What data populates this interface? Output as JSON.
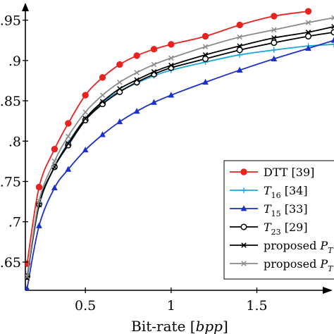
{
  "chart_data": {
    "type": "line",
    "xlabel": "Bit-rate [bpp]",
    "xlabel_parts": {
      "prefix": "Bit-rate [",
      "italic": "bpp",
      "suffix": "]"
    },
    "ylabel": "",
    "xlim": [
      0.15,
      1.95
    ],
    "ylim": [
      0.615,
      0.975
    ],
    "x_ticks": [
      0.5,
      1,
      1.5
    ],
    "x_tick_labels": [
      "0.5",
      "1",
      "1.5"
    ],
    "y_ticks": [
      0.65,
      0.7,
      0.75,
      0.8,
      0.85,
      0.9,
      0.95
    ],
    "y_tick_labels": [
      ".65",
      ".7",
      ".75",
      ".8",
      ".85",
      ".9",
      ".95"
    ],
    "grid": false,
    "legend_position": "lower-right",
    "series": [
      {
        "name": "DTT [39]",
        "name_parts": {
          "main": "DTT [39]",
          "sub": "",
          "suffix": ""
        },
        "color": "#e8231f",
        "marker": "circle",
        "points": [
          [
            0.16,
            0.648
          ],
          [
            0.23,
            0.743
          ],
          [
            0.32,
            0.79
          ],
          [
            0.4,
            0.822
          ],
          [
            0.5,
            0.857
          ],
          [
            0.6,
            0.879
          ],
          [
            0.7,
            0.895
          ],
          [
            0.8,
            0.906
          ],
          [
            0.9,
            0.914
          ],
          [
            1.0,
            0.92
          ],
          [
            1.2,
            0.93
          ],
          [
            1.4,
            0.944
          ],
          [
            1.6,
            0.955
          ],
          [
            1.8,
            0.961
          ]
        ]
      },
      {
        "name": "T16 [34]",
        "name_parts": {
          "main": "T",
          "sub": "16",
          "suffix": " [34]"
        },
        "color": "#1ba7d9",
        "marker": "plus",
        "points": [
          [
            0.16,
            0.632
          ],
          [
            0.23,
            0.72
          ],
          [
            0.32,
            0.768
          ],
          [
            0.4,
            0.798
          ],
          [
            0.5,
            0.828
          ],
          [
            0.6,
            0.848
          ],
          [
            0.7,
            0.862
          ],
          [
            0.8,
            0.872
          ],
          [
            0.9,
            0.881
          ],
          [
            1.0,
            0.888
          ],
          [
            1.2,
            0.898
          ],
          [
            1.4,
            0.907
          ],
          [
            1.6,
            0.913
          ],
          [
            1.8,
            0.918
          ],
          [
            1.95,
            0.92
          ]
        ]
      },
      {
        "name": "T15 [33]",
        "name_parts": {
          "main": "T",
          "sub": "15",
          "suffix": " [33]"
        },
        "color": "#1a30c8",
        "marker": "triangle",
        "points": [
          [
            0.16,
            0.617
          ],
          [
            0.23,
            0.695
          ],
          [
            0.32,
            0.742
          ],
          [
            0.4,
            0.765
          ],
          [
            0.5,
            0.789
          ],
          [
            0.6,
            0.808
          ],
          [
            0.7,
            0.824
          ],
          [
            0.8,
            0.837
          ],
          [
            0.9,
            0.848
          ],
          [
            1.0,
            0.857
          ],
          [
            1.2,
            0.873
          ],
          [
            1.4,
            0.888
          ],
          [
            1.6,
            0.902
          ],
          [
            1.8,
            0.915
          ],
          [
            1.95,
            0.925
          ]
        ]
      },
      {
        "name": "T23 [29]",
        "name_parts": {
          "main": "T",
          "sub": "23",
          "suffix": " [29]"
        },
        "color": "#000000",
        "marker": "open-circle",
        "points": [
          [
            0.16,
            0.632
          ],
          [
            0.23,
            0.722
          ],
          [
            0.32,
            0.768
          ],
          [
            0.4,
            0.795
          ],
          [
            0.5,
            0.826
          ],
          [
            0.6,
            0.846
          ],
          [
            0.7,
            0.861
          ],
          [
            0.8,
            0.873
          ],
          [
            0.9,
            0.883
          ],
          [
            1.0,
            0.891
          ],
          [
            1.2,
            0.902
          ],
          [
            1.4,
            0.913
          ],
          [
            1.6,
            0.922
          ],
          [
            1.8,
            0.93
          ],
          [
            1.95,
            0.935
          ]
        ]
      },
      {
        "name": "proposed PT",
        "name_parts": {
          "main": "proposed P",
          "sub": "T",
          "suffix": ""
        },
        "color": "#000000",
        "marker": "cross",
        "points": [
          [
            0.16,
            0.63
          ],
          [
            0.23,
            0.721
          ],
          [
            0.32,
            0.768
          ],
          [
            0.4,
            0.797
          ],
          [
            0.5,
            0.828
          ],
          [
            0.6,
            0.849
          ],
          [
            0.7,
            0.865
          ],
          [
            0.8,
            0.876
          ],
          [
            0.9,
            0.886
          ],
          [
            1.0,
            0.894
          ],
          [
            1.2,
            0.907
          ],
          [
            1.4,
            0.918
          ],
          [
            1.6,
            0.928
          ],
          [
            1.8,
            0.935
          ],
          [
            1.95,
            0.942
          ]
        ]
      },
      {
        "name": "proposed PT",
        "name_parts": {
          "main": "proposed P",
          "sub": "T",
          "suffix": ""
        },
        "color": "#8a8a8a",
        "marker": "cross",
        "points": [
          [
            0.16,
            0.632
          ],
          [
            0.23,
            0.726
          ],
          [
            0.32,
            0.775
          ],
          [
            0.4,
            0.806
          ],
          [
            0.5,
            0.836
          ],
          [
            0.6,
            0.857
          ],
          [
            0.7,
            0.873
          ],
          [
            0.8,
            0.885
          ],
          [
            0.9,
            0.895
          ],
          [
            1.0,
            0.903
          ],
          [
            1.2,
            0.917
          ],
          [
            1.4,
            0.929
          ],
          [
            1.6,
            0.938
          ],
          [
            1.8,
            0.947
          ],
          [
            1.95,
            0.953
          ]
        ]
      }
    ]
  }
}
